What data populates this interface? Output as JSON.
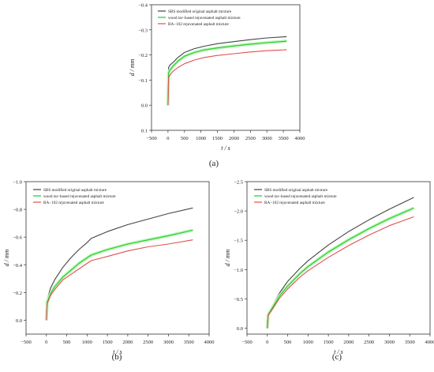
{
  "chart_data": [
    {
      "type": "line",
      "panel_label": "(a)",
      "xlabel": "t / s",
      "ylabel": "d / mm",
      "xlim": [
        -500,
        4000
      ],
      "ylim": [
        0.1,
        -0.4
      ],
      "y_inverted": true,
      "xticks": [
        "−500",
        "0",
        "500",
        "1000",
        "1500",
        "2000",
        "2500",
        "3000",
        "3500",
        "4000"
      ],
      "yticks": [
        "0.1",
        "0.0",
        "−0.1",
        "−0.2",
        "−0.3",
        "−0.4"
      ],
      "x_tick_values": [
        -500,
        0,
        500,
        1000,
        1500,
        2000,
        2500,
        3000,
        3500,
        4000
      ],
      "y_tick_values": [
        0.1,
        0.0,
        -0.1,
        -0.2,
        -0.3,
        -0.4
      ],
      "legend_position": "top-left",
      "grid": false,
      "series": [
        {
          "name": "SBS modified original asphalt mixture",
          "color": "#444444",
          "x": [
            0,
            20,
            60,
            150,
            300,
            500,
            800,
            1100,
            1500,
            2000,
            2500,
            3000,
            3500,
            3600
          ],
          "y": [
            0.0,
            -0.15,
            -0.16,
            -0.17,
            -0.19,
            -0.21,
            -0.225,
            -0.235,
            -0.245,
            -0.253,
            -0.261,
            -0.268,
            -0.272,
            -0.273
          ]
        },
        {
          "name": "wood tar–based rejuvenated asphalt mixture",
          "color": "#22cc22",
          "x": [
            0,
            20,
            60,
            150,
            300,
            500,
            800,
            1100,
            1500,
            2000,
            2500,
            3000,
            3500,
            3600
          ],
          "y": [
            0.0,
            -0.13,
            -0.14,
            -0.155,
            -0.175,
            -0.195,
            -0.21,
            -0.22,
            -0.228,
            -0.236,
            -0.243,
            -0.249,
            -0.254,
            -0.255
          ]
        },
        {
          "name": "RA−102 rejuvenated asphalt mixture",
          "color": "#e05050",
          "x": [
            0,
            20,
            60,
            150,
            300,
            500,
            800,
            1100,
            1500,
            2000,
            2500,
            3000,
            3500,
            3600
          ],
          "y": [
            0.0,
            -0.11,
            -0.12,
            -0.135,
            -0.15,
            -0.165,
            -0.18,
            -0.19,
            -0.198,
            -0.205,
            -0.212,
            -0.217,
            -0.22,
            -0.221
          ]
        }
      ]
    },
    {
      "type": "line",
      "panel_label": "(b)",
      "xlabel": "t / s",
      "ylabel": "d / mm",
      "xlim": [
        -500,
        4000
      ],
      "ylim": [
        0.1,
        -1.0
      ],
      "y_inverted": true,
      "xticks": [
        "−500",
        "0",
        "500",
        "1000",
        "1500",
        "2000",
        "2500",
        "3000",
        "3500",
        "4000"
      ],
      "yticks": [
        "0.0",
        "−0.2",
        "−0.4",
        "−0.6",
        "−0.8",
        "−1.0"
      ],
      "x_tick_values": [
        -500,
        0,
        500,
        1000,
        1500,
        2000,
        2500,
        3000,
        3500,
        4000
      ],
      "y_tick_values": [
        0.0,
        -0.2,
        -0.4,
        -0.6,
        -0.8,
        -1.0
      ],
      "legend_position": "top-left",
      "grid": false,
      "series": [
        {
          "name": "SBS modified original asphalt mixture",
          "color": "#444444",
          "x": [
            0,
            20,
            100,
            200,
            400,
            600,
            800,
            1000,
            1100,
            1500,
            2000,
            2500,
            3000,
            3600
          ],
          "y": [
            0.0,
            -0.15,
            -0.23,
            -0.29,
            -0.38,
            -0.45,
            -0.51,
            -0.56,
            -0.59,
            -0.64,
            -0.69,
            -0.73,
            -0.77,
            -0.81
          ]
        },
        {
          "name": "wood tar–based rejuvenated asphalt mixture",
          "color": "#22cc22",
          "x": [
            0,
            20,
            100,
            200,
            400,
            600,
            800,
            1000,
            1100,
            1500,
            2000,
            2500,
            3000,
            3600
          ],
          "y": [
            0.0,
            -0.13,
            -0.19,
            -0.24,
            -0.31,
            -0.36,
            -0.41,
            -0.45,
            -0.47,
            -0.51,
            -0.55,
            -0.58,
            -0.61,
            -0.65
          ]
        },
        {
          "name": "RA−102 rejuvenated asphalt mixture",
          "color": "#e05050",
          "x": [
            0,
            20,
            100,
            200,
            400,
            600,
            800,
            1000,
            1100,
            1500,
            2000,
            2500,
            3000,
            3600
          ],
          "y": [
            0.0,
            -0.12,
            -0.18,
            -0.22,
            -0.29,
            -0.33,
            -0.37,
            -0.41,
            -0.43,
            -0.46,
            -0.5,
            -0.53,
            -0.55,
            -0.58
          ]
        }
      ]
    },
    {
      "type": "line",
      "panel_label": "(c)",
      "xlabel": "t / s",
      "ylabel": "d / mm",
      "xlim": [
        -500,
        4000
      ],
      "ylim": [
        0.1,
        -2.5
      ],
      "y_inverted": true,
      "xticks": [
        "−500",
        "0",
        "500",
        "1000",
        "1500",
        "2000",
        "2500",
        "3000",
        "3500",
        "4000"
      ],
      "yticks": [
        "0.0",
        "−0.5",
        "−1.0",
        "−1.5",
        "−2.0",
        "−2.5"
      ],
      "x_tick_values": [
        -500,
        0,
        500,
        1000,
        1500,
        2000,
        2500,
        3000,
        3500,
        4000
      ],
      "y_tick_values": [
        0.0,
        -0.5,
        -1.0,
        -1.5,
        -2.0,
        -2.5
      ],
      "legend_position": "top-left",
      "grid": false,
      "series": [
        {
          "name": "SBS modified original asphalt mixture",
          "color": "#444444",
          "x": [
            0,
            20,
            100,
            300,
            500,
            800,
            1000,
            1500,
            2000,
            2500,
            3000,
            3600
          ],
          "y": [
            0.0,
            -0.25,
            -0.35,
            -0.6,
            -0.8,
            -1.02,
            -1.15,
            -1.42,
            -1.65,
            -1.85,
            -2.03,
            -2.23
          ]
        },
        {
          "name": "wood tar–based rejuvenated asphalt mixture",
          "color": "#22cc22",
          "x": [
            0,
            20,
            100,
            300,
            500,
            800,
            1000,
            1500,
            2000,
            2500,
            3000,
            3600
          ],
          "y": [
            0.0,
            -0.23,
            -0.32,
            -0.55,
            -0.72,
            -0.93,
            -1.05,
            -1.3,
            -1.51,
            -1.7,
            -1.87,
            -2.05
          ]
        },
        {
          "name": "RA−102 rejuvenated asphalt mixture",
          "color": "#e05050",
          "x": [
            0,
            20,
            100,
            300,
            500,
            800,
            1000,
            1500,
            2000,
            2500,
            3000,
            3600
          ],
          "y": [
            0.0,
            -0.22,
            -0.3,
            -0.51,
            -0.67,
            -0.87,
            -0.98,
            -1.21,
            -1.41,
            -1.59,
            -1.75,
            -1.9
          ]
        }
      ]
    }
  ]
}
